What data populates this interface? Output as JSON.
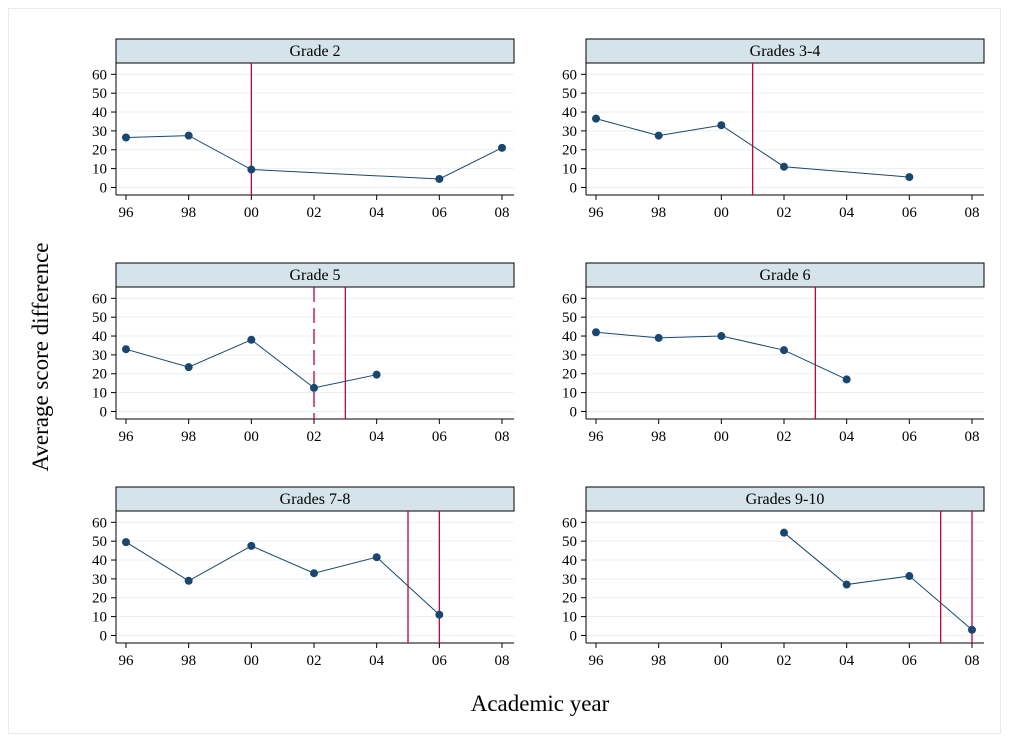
{
  "figure": {
    "ylabel": "Average score difference",
    "xlabel": "Academic year"
  },
  "colors": {
    "background": "#ffffff",
    "strip_fill": "#d5e3ea",
    "strip_border": "#000000",
    "line": "#1a476f",
    "marker": "#1a476f",
    "vline": "#c10534",
    "grid": "#eaf0f2"
  },
  "chart_data": [
    {
      "type": "line",
      "title": "Grade 2",
      "x": [
        "96",
        "98",
        "00",
        "06",
        "08"
      ],
      "y": [
        26.5,
        27.5,
        9.5,
        4.5,
        21
      ],
      "xticks": [
        "96",
        "98",
        "00",
        "02",
        "04",
        "06",
        "08"
      ],
      "yticks": [
        0,
        10,
        20,
        30,
        40,
        50,
        60
      ],
      "ylim": [
        -4,
        66
      ],
      "vlines": [
        {
          "x": "00",
          "style": "solid"
        }
      ],
      "grid": true
    },
    {
      "type": "line",
      "title": "Grades 3-4",
      "x": [
        "96",
        "98",
        "00",
        "02",
        "06"
      ],
      "y": [
        36.5,
        27.5,
        33,
        11,
        5.5
      ],
      "xticks": [
        "96",
        "98",
        "00",
        "02",
        "04",
        "06",
        "08"
      ],
      "yticks": [
        0,
        10,
        20,
        30,
        40,
        50,
        60
      ],
      "ylim": [
        -4,
        66
      ],
      "vlines": [
        {
          "x": "01",
          "style": "solid"
        }
      ],
      "grid": true
    },
    {
      "type": "line",
      "title": "Grade 5",
      "x": [
        "96",
        "98",
        "00",
        "02",
        "04"
      ],
      "y": [
        33,
        23.5,
        38,
        12.5,
        19.5
      ],
      "xticks": [
        "96",
        "98",
        "00",
        "02",
        "04",
        "06",
        "08"
      ],
      "yticks": [
        0,
        10,
        20,
        30,
        40,
        50,
        60
      ],
      "ylim": [
        -4,
        66
      ],
      "vlines": [
        {
          "x": "02",
          "style": "dashed"
        },
        {
          "x": "03",
          "style": "solid"
        }
      ],
      "grid": true
    },
    {
      "type": "line",
      "title": "Grade 6",
      "x": [
        "96",
        "98",
        "00",
        "02",
        "04"
      ],
      "y": [
        42,
        39,
        40,
        32.5,
        17
      ],
      "xticks": [
        "96",
        "98",
        "00",
        "02",
        "04",
        "06",
        "08"
      ],
      "yticks": [
        0,
        10,
        20,
        30,
        40,
        50,
        60
      ],
      "ylim": [
        -4,
        66
      ],
      "vlines": [
        {
          "x": "03",
          "style": "solid"
        }
      ],
      "grid": true
    },
    {
      "type": "line",
      "title": "Grades 7-8",
      "x": [
        "96",
        "98",
        "00",
        "02",
        "04",
        "06"
      ],
      "y": [
        49.5,
        29,
        47.5,
        33,
        41.5,
        11
      ],
      "xticks": [
        "96",
        "98",
        "00",
        "02",
        "04",
        "06",
        "08"
      ],
      "yticks": [
        0,
        10,
        20,
        30,
        40,
        50,
        60
      ],
      "ylim": [
        -4,
        66
      ],
      "vlines": [
        {
          "x": "05",
          "style": "solid"
        },
        {
          "x": "06",
          "style": "solid"
        }
      ],
      "grid": true
    },
    {
      "type": "line",
      "title": "Grades 9-10",
      "x": [
        "02",
        "04",
        "06",
        "08"
      ],
      "y": [
        54.5,
        27,
        31.5,
        3
      ],
      "xticks": [
        "96",
        "98",
        "00",
        "02",
        "04",
        "06",
        "08"
      ],
      "yticks": [
        0,
        10,
        20,
        30,
        40,
        50,
        60
      ],
      "ylim": [
        -4,
        66
      ],
      "vlines": [
        {
          "x": "07",
          "style": "solid"
        },
        {
          "x": "08",
          "style": "solid"
        }
      ],
      "grid": true
    }
  ]
}
